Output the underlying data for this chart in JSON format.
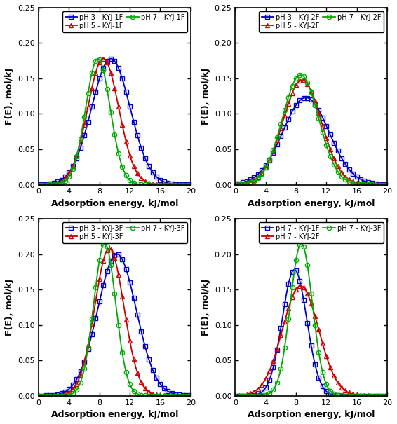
{
  "subplots": [
    {
      "series": [
        {
          "label": "pH 3 - KYJ-1F",
          "color": "#0000CC",
          "marker": "s",
          "mu": 9.5,
          "sigma": 2.55,
          "amp": 0.178
        },
        {
          "label": "pH 5 - KYJ-1F",
          "color": "#CC0000",
          "marker": "^",
          "mu": 8.5,
          "sigma": 2.05,
          "amp": 0.178
        },
        {
          "label": "pH 7 - KYJ-1F",
          "color": "#00AA00",
          "marker": "o",
          "mu": 7.8,
          "sigma": 1.62,
          "amp": 0.178
        }
      ]
    },
    {
      "series": [
        {
          "label": "pH 3 - KYJ-2F",
          "color": "#0000CC",
          "marker": "s",
          "mu": 9.3,
          "sigma": 3.05,
          "amp": 0.123
        },
        {
          "label": "pH 5 - KYJ-2F",
          "color": "#CC0000",
          "marker": "^",
          "mu": 8.8,
          "sigma": 2.52,
          "amp": 0.148
        },
        {
          "label": "pH 7 - KYJ-2F",
          "color": "#00AA00",
          "marker": "o",
          "mu": 8.6,
          "sigma": 2.38,
          "amp": 0.155
        }
      ]
    },
    {
      "series": [
        {
          "label": "pH 3 - KYJ-3F",
          "color": "#0000CC",
          "marker": "s",
          "mu": 10.3,
          "sigma": 2.55,
          "amp": 0.2
        },
        {
          "label": "pH 5 - KYJ-3F",
          "color": "#CC0000",
          "marker": "^",
          "mu": 9.3,
          "sigma": 1.92,
          "amp": 0.208
        },
        {
          "label": "pH 7 - KYJ-3F",
          "color": "#00AA00",
          "marker": "o",
          "mu": 8.7,
          "sigma": 1.45,
          "amp": 0.215
        }
      ]
    },
    {
      "series": [
        {
          "label": "pH 7 - KYJ-1F",
          "color": "#0000CC",
          "marker": "s",
          "mu": 7.8,
          "sigma": 1.62,
          "amp": 0.178
        },
        {
          "label": "pH 7 - KYJ-2F",
          "color": "#CC0000",
          "marker": "^",
          "mu": 8.6,
          "sigma": 2.38,
          "amp": 0.155
        },
        {
          "label": "pH 7 - KYJ-3F",
          "color": "#00AA00",
          "marker": "o",
          "mu": 8.7,
          "sigma": 1.45,
          "amp": 0.215
        }
      ]
    }
  ],
  "xlabel": "Adsorption energy, kJ/mol",
  "ylabel": "F(E), mol/kJ",
  "xlim": [
    0,
    20
  ],
  "ylim": [
    0,
    0.25
  ],
  "xticks": [
    0,
    4,
    8,
    12,
    16,
    20
  ],
  "yticks": [
    0.0,
    0.05,
    0.1,
    0.15,
    0.2,
    0.25
  ],
  "marker_interval": 0.5,
  "marker_size": 4.5,
  "line_width": 1.3,
  "legend_fontsize": 7.0,
  "axis_fontsize": 9,
  "tick_fontsize": 8.0
}
